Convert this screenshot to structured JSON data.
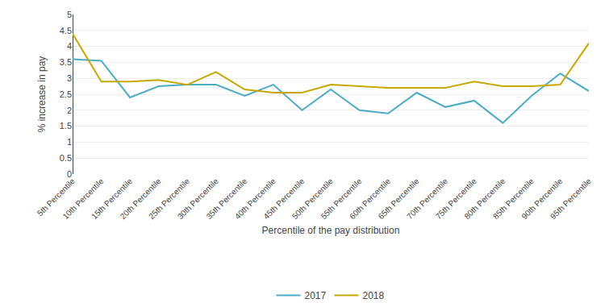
{
  "chart_data": {
    "type": "line",
    "categories": [
      "5th Percentile",
      "10th Percentile",
      "15th Percentile",
      "20th Percentile",
      "25th Percentile",
      "30th Percentile",
      "35th Percentile",
      "40th Percentile",
      "45th Percentile",
      "50th Percentile",
      "55th Percentile",
      "60th Percentile",
      "65th Percentile",
      "70th Percentile",
      "75th Percentile",
      "80th Percentile",
      "85th Percentile",
      "90th Percentile",
      "95th Percentile"
    ],
    "series": [
      {
        "name": "2017",
        "color": "#4BACC6",
        "values": [
          3.6,
          3.55,
          2.4,
          2.75,
          2.8,
          2.8,
          2.45,
          2.8,
          2.0,
          2.65,
          2.0,
          1.9,
          2.55,
          2.1,
          2.3,
          1.6,
          2.45,
          3.15,
          2.6
        ]
      },
      {
        "name": "2018",
        "color": "#C8A800",
        "values": [
          4.4,
          2.9,
          2.9,
          2.95,
          2.8,
          3.2,
          2.65,
          2.55,
          2.55,
          2.8,
          2.75,
          2.7,
          2.7,
          2.7,
          2.9,
          2.75,
          2.75,
          2.8,
          4.1
        ]
      }
    ],
    "xlabel": "Percentile of the pay distribution",
    "ylabel": "% increase in pay",
    "ylim": [
      0,
      5
    ],
    "yticks": [
      0,
      0.5,
      1,
      1.5,
      2,
      2.5,
      3,
      3.5,
      4,
      4.5,
      5
    ],
    "grid": true,
    "legend": "lower center"
  }
}
